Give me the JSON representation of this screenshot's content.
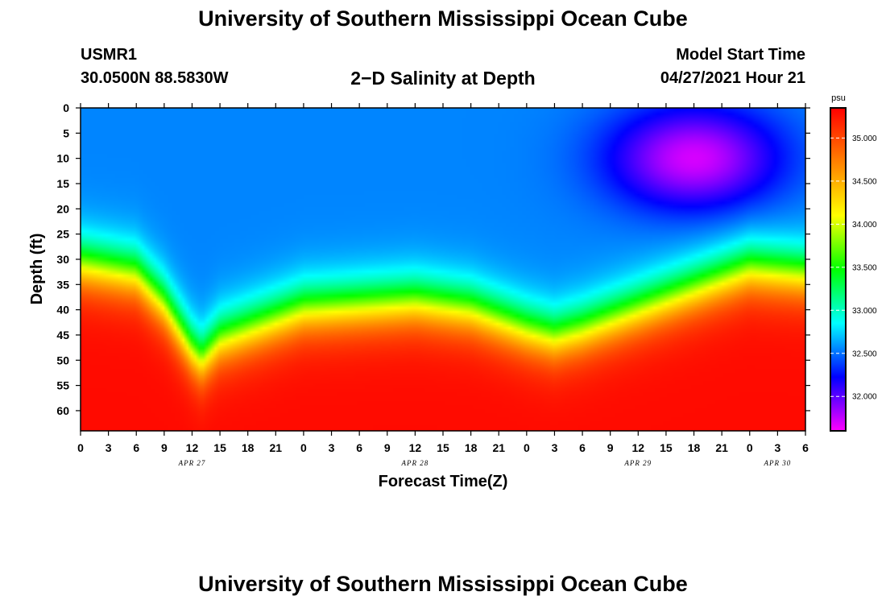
{
  "header": {
    "title_top": "University of Southern Mississippi Ocean Cube",
    "title_bottom": "University of Southern Mississippi Ocean Cube",
    "station": "USMR1",
    "coords": "30.0500N  88.5830W",
    "plot_title": "2−D Salinity at Depth",
    "model_start_label": "Model Start Time",
    "model_start_value": "04/27/2021 Hour 21"
  },
  "chart_data": {
    "type": "heatmap",
    "title": "2−D Salinity at Depth",
    "xlabel": "Forecast Time(Z)",
    "ylabel": "Depth (ft)",
    "x_hours": [
      0,
      3,
      6,
      9,
      12,
      15,
      18,
      21,
      24,
      27,
      30,
      33,
      36,
      39,
      42,
      45,
      48,
      51,
      54,
      57,
      60,
      63,
      66,
      69,
      72,
      75,
      78
    ],
    "x_tick_labels": [
      "0",
      "3",
      "6",
      "9",
      "12",
      "15",
      "18",
      "21",
      "0",
      "3",
      "6",
      "9",
      "12",
      "15",
      "18",
      "21",
      "0",
      "3",
      "6",
      "9",
      "12",
      "15",
      "18",
      "21",
      "0",
      "3",
      "6"
    ],
    "date_labels": [
      {
        "label": "APR 27",
        "hour": 12
      },
      {
        "label": "APR 28",
        "hour": 36
      },
      {
        "label": "APR 29",
        "hour": 60
      },
      {
        "label": "APR 30",
        "hour": 75
      }
    ],
    "xlim": [
      0,
      78
    ],
    "y_ticks": [
      0,
      5,
      10,
      15,
      20,
      25,
      30,
      35,
      40,
      45,
      50,
      55,
      60
    ],
    "ylim": [
      0,
      64
    ],
    "y_inverted": true,
    "colorbar": {
      "unit": "psu",
      "range": [
        31.6,
        35.35
      ],
      "ticks": [
        "32.000",
        "32.500",
        "33.000",
        "33.500",
        "34.000",
        "34.500",
        "35.000"
      ],
      "colormap": [
        "#ff00ff",
        "#0000ff",
        "#00ffff",
        "#00ff00",
        "#ffff00",
        "#ff8000",
        "#ff0000"
      ]
    },
    "halocline_depth_ft": [
      {
        "hour": 0,
        "depth": 30
      },
      {
        "hour": 6,
        "depth": 32
      },
      {
        "hour": 9,
        "depth": 38
      },
      {
        "hour": 12,
        "depth": 47
      },
      {
        "hour": 13,
        "depth": 49
      },
      {
        "hour": 15,
        "depth": 45
      },
      {
        "hour": 24,
        "depth": 39
      },
      {
        "hour": 36,
        "depth": 37.5
      },
      {
        "hour": 42,
        "depth": 39
      },
      {
        "hour": 48,
        "depth": 43
      },
      {
        "hour": 51,
        "depth": 44.5
      },
      {
        "hour": 54,
        "depth": 43
      },
      {
        "hour": 60,
        "depth": 39
      },
      {
        "hour": 66,
        "depth": 35
      },
      {
        "hour": 72,
        "depth": 31
      },
      {
        "hour": 78,
        "depth": 32
      }
    ],
    "surface_salinity_high": {
      "hour": 66,
      "depth": 10,
      "value": 31.7
    },
    "bottom_salinity": 35.3
  }
}
